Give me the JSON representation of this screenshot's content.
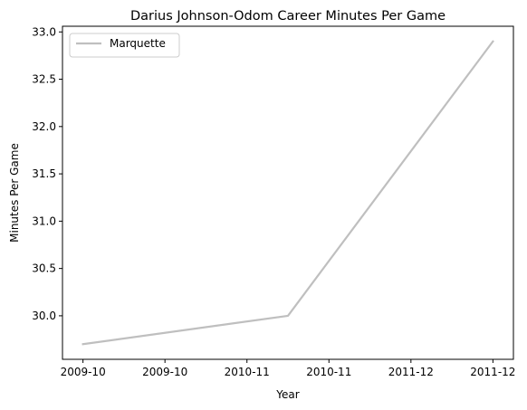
{
  "chart_data": {
    "type": "line",
    "title": "Darius Johnson-Odom Career Minutes Per Game",
    "xlabel": "Year",
    "ylabel": "Minutes Per Game",
    "x_tick_labels": [
      "2009-10",
      "2009-10",
      "2010-11",
      "2010-11",
      "2011-12",
      "2011-12"
    ],
    "x_ticks": [
      0,
      0.4,
      0.8,
      1.2,
      1.6,
      2.0
    ],
    "x_range": [
      -0.1,
      2.1
    ],
    "ylim": [
      29.54,
      33.06
    ],
    "y_ticks": [
      30.0,
      30.5,
      31.0,
      31.5,
      32.0,
      32.5,
      33.0
    ],
    "y_tick_labels": [
      "30.0",
      "30.5",
      "31.0",
      "31.5",
      "32.0",
      "32.5",
      "33.0"
    ],
    "grid": false,
    "legend_position": "upper-left",
    "series": [
      {
        "name": "Marquette",
        "color": "#bfbfbf",
        "x": [
          0,
          1,
          2
        ],
        "x_labels": [
          "2009-10",
          "2010-11",
          "2011-12"
        ],
        "values": [
          29.7,
          30.0,
          32.9
        ]
      }
    ]
  }
}
